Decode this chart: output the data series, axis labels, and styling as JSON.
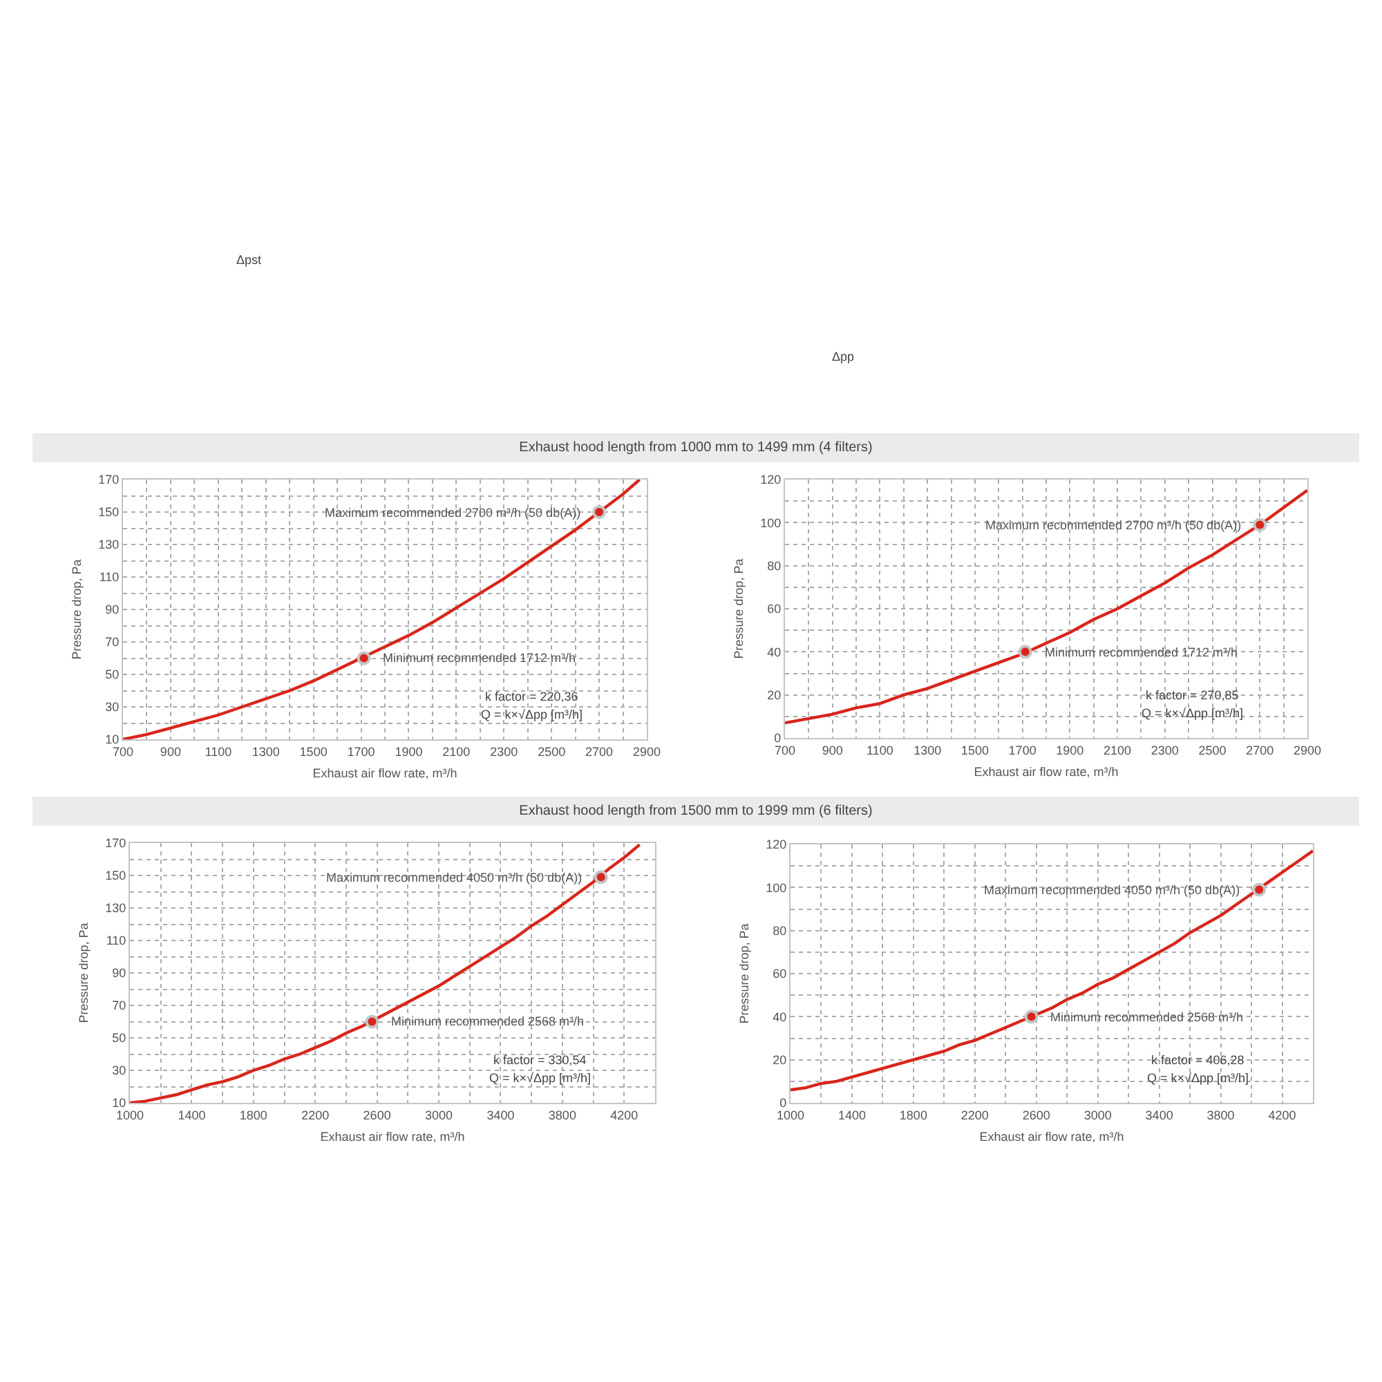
{
  "chart_data": [
    {
      "type": "other",
      "annotations": [
        "Δpst",
        "Δpp"
      ]
    },
    {
      "type": "line",
      "title": "Exhaust hood length from 1000 mm to 1499 mm (4 filters)",
      "xlabel": "Exhaust air flow rate, m³/h",
      "ylabel": "Pressure drop, Pa",
      "series": [
        {
          "type": "line",
          "color": "#d8261c",
          "x": [
            700,
            800,
            900,
            1000,
            1100,
            1200,
            1300,
            1400,
            1500,
            1600,
            1700,
            1800,
            1900,
            2000,
            2100,
            2200,
            2300,
            2400,
            2500,
            2600,
            2700,
            2800,
            2870
          ],
          "values": [
            10,
            13,
            17,
            21,
            25,
            30,
            35,
            40,
            46,
            53,
            60,
            67,
            74,
            82,
            91,
            100,
            109,
            119,
            129,
            139,
            150,
            161,
            170
          ]
        },
        {
          "type": "scatter",
          "color": "#d8261c",
          "x": [
            1712,
            2700
          ],
          "values": [
            60,
            150
          ]
        }
      ],
      "xlim": [
        700,
        2900
      ],
      "ylim": [
        10,
        170
      ],
      "xticks": [
        700,
        {
          "value": 800,
          "label": null
        },
        900,
        {
          "value": 1000,
          "label": null
        },
        1100,
        {
          "value": 1200,
          "label": null
        },
        1300,
        {
          "value": 1400,
          "label": null
        },
        1500,
        {
          "value": 1600,
          "label": null
        },
        1700,
        {
          "value": 1800,
          "label": null
        },
        1900,
        {
          "value": 2000,
          "label": null
        },
        2100,
        {
          "value": 2200,
          "label": null
        },
        2300,
        {
          "value": 2400,
          "label": null
        },
        2500,
        {
          "value": 2600,
          "label": null
        },
        2700,
        {
          "value": 2800,
          "label": null
        },
        2900
      ],
      "yticks": [
        10,
        {
          "value": 20,
          "label": null
        },
        30,
        {
          "value": 40,
          "label": null
        },
        50,
        {
          "value": 60,
          "label": null
        },
        70,
        {
          "value": 80,
          "label": null
        },
        90,
        {
          "value": 100,
          "label": null
        },
        110,
        {
          "value": 120,
          "label": null
        },
        130,
        {
          "value": 140,
          "label": null
        },
        150,
        {
          "value": 160,
          "label": null
        },
        170
      ],
      "grid": true,
      "annotations": [
        {
          "text": "Maximum recommended 2700 m³/h (50 db(A))",
          "x": 2700,
          "y": 150
        },
        {
          "text": "Minimum recommended 1712 m³/h",
          "x": 1712,
          "y": 60
        },
        "k factor = 220,36",
        "Q = k×√Δpp [m³/h]"
      ]
    },
    {
      "type": "line",
      "xlabel": "Exhaust air flow rate, m³/h",
      "ylabel": "Pressure drop, Pa",
      "series": [
        {
          "type": "line",
          "color": "#d8261c",
          "x": [
            700,
            800,
            900,
            1000,
            1100,
            1200,
            1300,
            1400,
            1500,
            1600,
            1700,
            1800,
            1900,
            2000,
            2100,
            2200,
            2300,
            2400,
            2500,
            2600,
            2700,
            2800,
            2900
          ],
          "values": [
            7,
            9,
            11,
            14,
            16,
            20,
            23,
            27,
            31,
            35,
            39,
            44,
            49,
            55,
            60,
            66,
            72,
            79,
            85,
            92,
            99,
            107,
            115
          ]
        },
        {
          "type": "scatter",
          "color": "#d8261c",
          "x": [
            1712,
            2700
          ],
          "values": [
            40,
            99
          ]
        }
      ],
      "xlim": [
        700,
        2900
      ],
      "ylim": [
        0,
        120
      ],
      "xticks": [
        700,
        {
          "value": 800,
          "label": null
        },
        900,
        {
          "value": 1000,
          "label": null
        },
        1100,
        {
          "value": 1200,
          "label": null
        },
        1300,
        {
          "value": 1400,
          "label": null
        },
        1500,
        {
          "value": 1600,
          "label": null
        },
        1700,
        {
          "value": 1800,
          "label": null
        },
        1900,
        {
          "value": 2000,
          "label": null
        },
        2100,
        {
          "value": 2200,
          "label": null
        },
        2300,
        {
          "value": 2400,
          "label": null
        },
        2500,
        {
          "value": 2600,
          "label": null
        },
        2700,
        {
          "value": 2800,
          "label": null
        },
        2900
      ],
      "yticks": [
        0,
        {
          "value": 10,
          "label": null
        },
        20,
        {
          "value": 30,
          "label": null
        },
        40,
        {
          "value": 50,
          "label": null
        },
        60,
        {
          "value": 70,
          "label": null
        },
        80,
        {
          "value": 90,
          "label": null
        },
        100,
        {
          "value": 110,
          "label": null
        },
        120
      ],
      "grid": true,
      "annotations": [
        {
          "text": "Maximum recommended 2700 m³/h (50 db(A))",
          "x": 2700,
          "y": 99
        },
        {
          "text": "Minimum recommended 1712 m³/h",
          "x": 1712,
          "y": 40
        },
        "k factor = 270,85",
        "Q = k×√Δpp [m³/h]"
      ]
    },
    {
      "type": "line",
      "title": "Exhaust hood length from 1500 mm to 1999 mm (6 filters)",
      "xlabel": "Exhaust air flow rate, m³/h",
      "ylabel": "Pressure drop, Pa",
      "series": [
        {
          "type": "line",
          "color": "#d8261c",
          "x": [
            1000,
            1100,
            1200,
            1300,
            1400,
            1500,
            1600,
            1700,
            1800,
            1900,
            2000,
            2100,
            2200,
            2300,
            2400,
            2500,
            2600,
            2700,
            2800,
            2900,
            3000,
            3100,
            3200,
            3300,
            3400,
            3500,
            3600,
            3700,
            3800,
            3900,
            4000,
            4100,
            4200,
            4300
          ],
          "values": [
            10,
            11,
            13,
            15,
            18,
            21,
            23,
            26,
            30,
            33,
            37,
            40,
            44,
            48,
            53,
            57,
            62,
            67,
            72,
            77,
            82,
            88,
            94,
            100,
            106,
            112,
            119,
            125,
            132,
            139,
            146,
            154,
            161,
            169
          ]
        },
        {
          "type": "scatter",
          "color": "#d8261c",
          "x": [
            2568,
            4050
          ],
          "values": [
            60,
            149
          ]
        }
      ],
      "xlim": [
        1000,
        4400
      ],
      "ylim": [
        10,
        170
      ],
      "xticks": [
        1000,
        {
          "value": 1200,
          "label": null
        },
        1400,
        {
          "value": 1600,
          "label": null
        },
        1800,
        {
          "value": 2000,
          "label": null
        },
        2200,
        {
          "value": 2400,
          "label": null
        },
        2600,
        {
          "value": 2800,
          "label": null
        },
        3000,
        {
          "value": 3200,
          "label": null
        },
        3400,
        {
          "value": 3600,
          "label": null
        },
        3800,
        {
          "value": 4000,
          "label": null
        },
        4200
      ],
      "yticks": [
        10,
        {
          "value": 20,
          "label": null
        },
        30,
        {
          "value": 40,
          "label": null
        },
        50,
        {
          "value": 60,
          "label": null
        },
        70,
        {
          "value": 80,
          "label": null
        },
        90,
        {
          "value": 100,
          "label": null
        },
        110,
        {
          "value": 120,
          "label": null
        },
        130,
        {
          "value": 140,
          "label": null
        },
        150,
        {
          "value": 160,
          "label": null
        },
        170
      ],
      "grid": true,
      "annotations": [
        {
          "text": "Maximum recommended 4050 m³/h (50 db(A))",
          "x": 4050,
          "y": 149
        },
        {
          "text": "Minimum recommended 2568 m³/h",
          "x": 2568,
          "y": 60
        },
        "k factor = 330,54",
        "Q = k×√Δpp [m³/h]"
      ]
    },
    {
      "type": "line",
      "xlabel": "Exhaust air flow rate, m³/h",
      "ylabel": "Pressure drop, Pa",
      "series": [
        {
          "type": "line",
          "color": "#d8261c",
          "x": [
            1000,
            1100,
            1200,
            1300,
            1400,
            1500,
            1600,
            1700,
            1800,
            1900,
            2000,
            2100,
            2200,
            2300,
            2400,
            2500,
            2600,
            2700,
            2800,
            2900,
            3000,
            3100,
            3200,
            3300,
            3400,
            3500,
            3600,
            3700,
            3800,
            3900,
            4000,
            4100,
            4200,
            4300,
            4400
          ],
          "values": [
            6,
            7,
            9,
            10,
            12,
            14,
            16,
            18,
            20,
            22,
            24,
            27,
            29,
            32,
            35,
            38,
            41,
            44,
            48,
            51,
            55,
            58,
            62,
            66,
            70,
            74,
            79,
            83,
            87,
            92,
            97,
            102,
            107,
            112,
            117
          ]
        },
        {
          "type": "scatter",
          "color": "#d8261c",
          "x": [
            2568,
            4050
          ],
          "values": [
            40,
            99
          ]
        }
      ],
      "xlim": [
        1000,
        4400
      ],
      "ylim": [
        0,
        120
      ],
      "xticks": [
        1000,
        {
          "value": 1200,
          "label": null
        },
        1400,
        {
          "value": 1600,
          "label": null
        },
        1800,
        {
          "value": 2000,
          "label": null
        },
        2200,
        {
          "value": 2400,
          "label": null
        },
        2600,
        {
          "value": 2800,
          "label": null
        },
        3000,
        {
          "value": 3200,
          "label": null
        },
        3400,
        {
          "value": 3600,
          "label": null
        },
        3800,
        {
          "value": 4000,
          "label": null
        },
        4200
      ],
      "yticks": [
        0,
        {
          "value": 10,
          "label": null
        },
        20,
        {
          "value": 30,
          "label": null
        },
        40,
        {
          "value": 50,
          "label": null
        },
        60,
        {
          "value": 70,
          "label": null
        },
        80,
        {
          "value": 90,
          "label": null
        },
        100,
        {
          "value": 110,
          "label": null
        },
        120
      ],
      "grid": true,
      "annotations": [
        {
          "text": "Maximum recommended 4050 m³/h (50 db(A))",
          "x": 4050,
          "y": 99
        },
        {
          "text": "Minimum recommended 2568 m³/h",
          "x": 2568,
          "y": 40
        },
        "k factor = 406,28",
        "Q = k×√Δpp [m³/h]"
      ]
    }
  ]
}
